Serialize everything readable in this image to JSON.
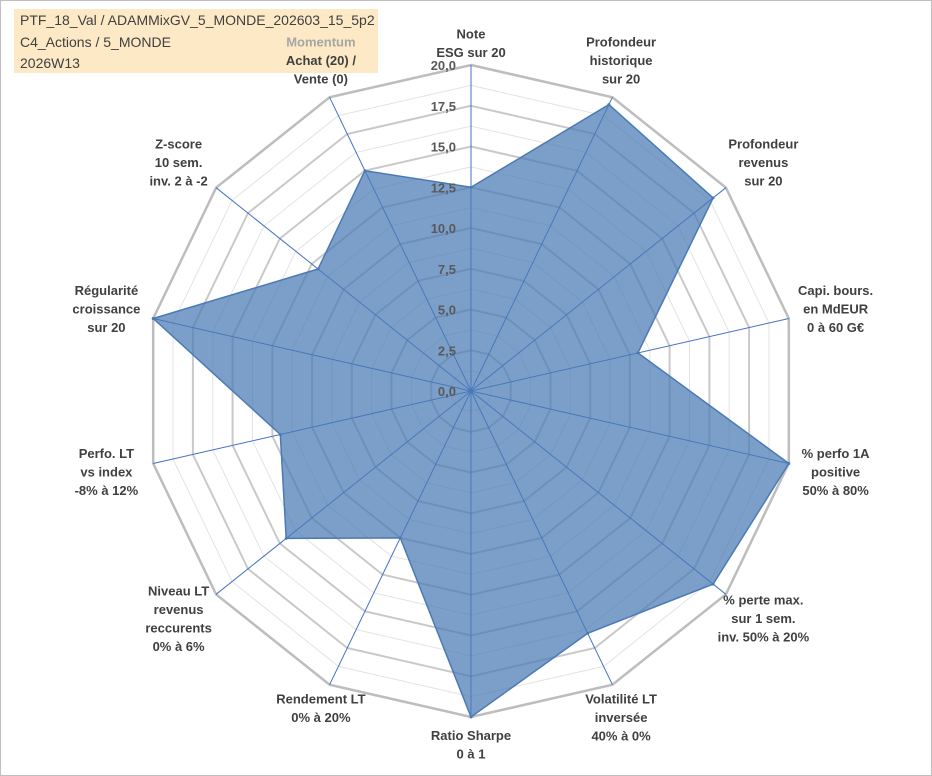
{
  "header": {
    "line1": "PTF_18_Val / ADAMMixGV_5_MONDE_202603_15_5p2",
    "line2": "C4_Actions / 5_MONDE",
    "line3": "2026W13"
  },
  "chart_data": {
    "type": "radar",
    "title": "",
    "rlim": [
      0,
      20
    ],
    "ticks": [
      "0,0",
      "2,5",
      "5,0",
      "7,5",
      "10,0",
      "12,5",
      "15,0",
      "17,5",
      "20,0"
    ],
    "gridlines": true,
    "series": [
      {
        "name": "PTF_18_Val",
        "color": "#4a7ab6",
        "values": [
          12.5,
          19.5,
          19.0,
          10.5,
          20.0,
          19.0,
          16.5,
          20.0,
          10.0,
          14.5,
          12.0,
          20.0,
          12.0,
          15.0
        ]
      }
    ],
    "axes": [
      {
        "lines": [
          "Note",
          "ESG sur 20"
        ]
      },
      {
        "lines": [
          "Profondeur",
          "historique",
          "sur 20"
        ]
      },
      {
        "lines": [
          "Profondeur",
          "revenus",
          "sur 20"
        ]
      },
      {
        "lines": [
          "Capi. bours.",
          "en MdEUR",
          "0 à 60 G€"
        ]
      },
      {
        "lines": [
          "% perfo 1A",
          "positive",
          "50% à 80%"
        ]
      },
      {
        "lines": [
          "% perte max.",
          "sur 1 sem.",
          "inv. 50% à 20%"
        ]
      },
      {
        "lines": [
          "Volatilité LT",
          "inversée",
          "40% à 0%"
        ]
      },
      {
        "lines": [
          "Ratio Sharpe",
          "0 à 1"
        ]
      },
      {
        "lines": [
          "Rendement LT",
          "0% à 20%"
        ]
      },
      {
        "lines": [
          "Niveau LT",
          "revenus",
          "reccurents",
          "0% à 6%"
        ]
      },
      {
        "lines": [
          "Perfo. LT",
          "vs index",
          "-8% à 12%"
        ]
      },
      {
        "lines": [
          "Régularité",
          "croissance",
          "sur 20"
        ]
      },
      {
        "lines": [
          "Z-score",
          "10 sem.",
          "inv. 2 à -2"
        ]
      },
      {
        "lines": [
          "Momentum",
          "Achat (20) /",
          "Vente (0)"
        ],
        "first_color": "#a6a6a6"
      }
    ]
  }
}
